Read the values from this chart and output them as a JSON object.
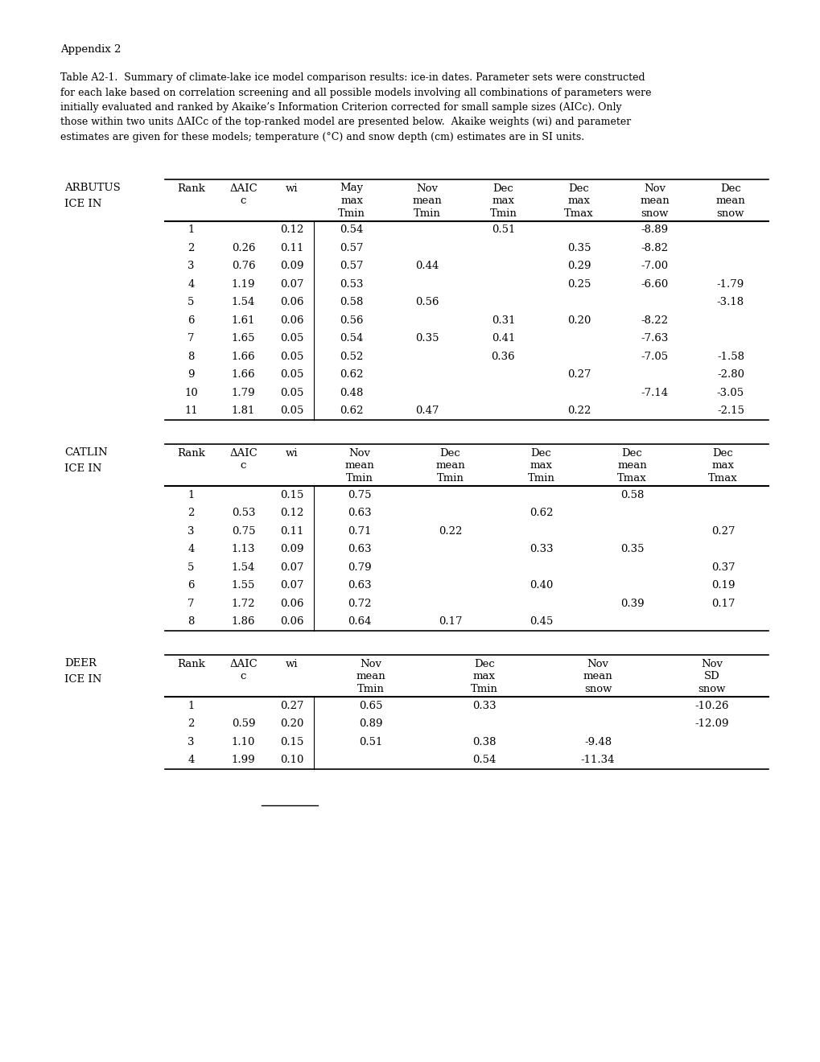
{
  "appendix_text": "Appendix 2",
  "caption_lines": [
    "Table A2-1.  Summary of climate-lake ice model comparison results: ice-in dates. Parameter sets were constructed",
    "for each lake based on correlation screening and all possible models involving all combinations of parameters were",
    "initially evaluated and ranked by Akaike’s Information Criterion corrected for small sample sizes (AICc). Only",
    "those within two units ΔAICc of the top-ranked model are presented below.  Akaike weights (wi) and parameter",
    "estimates are given for these models; temperature (°C) and snow depth (cm) estimates are in SI units."
  ],
  "tables": [
    {
      "lake": [
        "ARBUTUS",
        "ICE IN"
      ],
      "col_headers": [
        [
          "Rank"
        ],
        [
          "ΔAIC",
          "c"
        ],
        [
          "wi"
        ],
        [
          "May",
          "max",
          "Tmin"
        ],
        [
          "Nov",
          "mean",
          "Tmin"
        ],
        [
          "Dec",
          "max",
          "Tmin"
        ],
        [
          "Dec",
          "max",
          "Tmax"
        ],
        [
          "Nov",
          "mean",
          "snow"
        ],
        [
          "Dec",
          "mean",
          "snow"
        ]
      ],
      "rows": [
        [
          "1",
          "",
          "0.12",
          "0.54",
          "",
          "0.51",
          "",
          "-8.89",
          ""
        ],
        [
          "2",
          "0.26",
          "0.11",
          "0.57",
          "",
          "",
          "0.35",
          "-8.82",
          ""
        ],
        [
          "3",
          "0.76",
          "0.09",
          "0.57",
          "0.44",
          "",
          "0.29",
          "-7.00",
          ""
        ],
        [
          "4",
          "1.19",
          "0.07",
          "0.53",
          "",
          "",
          "0.25",
          "-6.60",
          "-1.79"
        ],
        [
          "5",
          "1.54",
          "0.06",
          "0.58",
          "0.56",
          "",
          "",
          "",
          "-3.18"
        ],
        [
          "6",
          "1.61",
          "0.06",
          "0.56",
          "",
          "0.31",
          "0.20",
          "-8.22",
          ""
        ],
        [
          "7",
          "1.65",
          "0.05",
          "0.54",
          "0.35",
          "0.41",
          "",
          "-7.63",
          ""
        ],
        [
          "8",
          "1.66",
          "0.05",
          "0.52",
          "",
          "0.36",
          "",
          "-7.05",
          "-1.58"
        ],
        [
          "9",
          "1.66",
          "0.05",
          "0.62",
          "",
          "",
          "0.27",
          "",
          "-2.80"
        ],
        [
          "10",
          "1.79",
          "0.05",
          "0.48",
          "",
          "",
          "",
          "-7.14",
          "-3.05"
        ],
        [
          "11",
          "1.81",
          "0.05",
          "0.62",
          "0.47",
          "",
          "0.22",
          "",
          "-2.15"
        ]
      ]
    },
    {
      "lake": [
        "CATLIN",
        "ICE IN"
      ],
      "col_headers": [
        [
          "Rank"
        ],
        [
          "ΔAIC",
          "c"
        ],
        [
          "wi"
        ],
        [
          "Nov",
          "mean",
          "Tmin"
        ],
        [
          "Dec",
          "mean",
          "Tmin"
        ],
        [
          "Dec",
          "max",
          "Tmin"
        ],
        [
          "Dec",
          "mean",
          "Tmax"
        ],
        [
          "Dec",
          "max",
          "Tmax"
        ]
      ],
      "rows": [
        [
          "1",
          "",
          "0.15",
          "0.75",
          "",
          "",
          "0.58",
          ""
        ],
        [
          "2",
          "0.53",
          "0.12",
          "0.63",
          "",
          "0.62",
          "",
          ""
        ],
        [
          "3",
          "0.75",
          "0.11",
          "0.71",
          "0.22",
          "",
          "",
          "0.27"
        ],
        [
          "4",
          "1.13",
          "0.09",
          "0.63",
          "",
          "0.33",
          "0.35",
          ""
        ],
        [
          "5",
          "1.54",
          "0.07",
          "0.79",
          "",
          "",
          "",
          "0.37"
        ],
        [
          "6",
          "1.55",
          "0.07",
          "0.63",
          "",
          "0.40",
          "",
          "0.19"
        ],
        [
          "7",
          "1.72",
          "0.06",
          "0.72",
          "",
          "",
          "0.39",
          "0.17"
        ],
        [
          "8",
          "1.86",
          "0.06",
          "0.64",
          "0.17",
          "0.45",
          "",
          ""
        ]
      ]
    },
    {
      "lake": [
        "DEER",
        "ICE IN"
      ],
      "col_headers": [
        [
          "Rank"
        ],
        [
          "ΔAIC",
          "c"
        ],
        [
          "wi"
        ],
        [
          "Nov",
          "mean",
          "Tmin"
        ],
        [
          "Dec",
          "max",
          "Tmin"
        ],
        [
          "Nov",
          "mean",
          "snow"
        ],
        [
          "Nov",
          "SD",
          "snow"
        ]
      ],
      "rows": [
        [
          "1",
          "",
          "0.27",
          "0.65",
          "0.33",
          "",
          "-10.26"
        ],
        [
          "2",
          "0.59",
          "0.20",
          "0.89",
          "",
          "",
          "-12.09"
        ],
        [
          "3",
          "1.10",
          "0.15",
          "0.51",
          "0.38",
          "-9.48",
          ""
        ],
        [
          "4",
          "1.99",
          "0.10",
          "",
          "0.54",
          "-11.34",
          ""
        ]
      ]
    }
  ],
  "footnote_line": true
}
